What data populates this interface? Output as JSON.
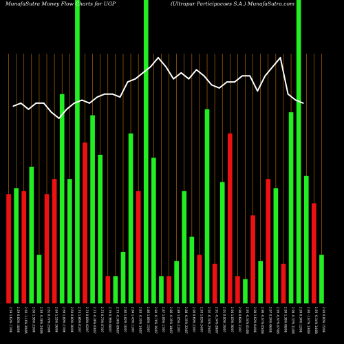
{
  "chart_data": {
    "type": "bar",
    "title_left": "MunafaSutra  Money Flow  Charts for UGP",
    "title_right": "(Ultrapar Participacoes S.A.) MunafaSutra.com",
    "colors": {
      "background": "#000000",
      "up": "#22ee22",
      "down": "#ee1111",
      "grid": "#c8780a",
      "line": "#ffffff"
    },
    "ylim": [
      0,
      100
    ],
    "categories": [
      "2.59 1.62% 17/06",
      "2.59 0.00% 18/06",
      "2.56 -1.16% 20/06",
      "2.60 1.56% 23/06",
      "2.59 -0.38% 24/06",
      "2.61 0.77% 25/06",
      "2.64 1.15% 26/06",
      "2.69 1.89% 27/06",
      "2.69 0.00% 30/06",
      "2.74 1.86% 01/07",
      "2.74 0.00% 02/07",
      "2.73 -0.36% 03/07",
      "2.75 0.73% 07/07",
      "2.76 0.36% 08/07",
      "2.75 -0.36% 09/07",
      "2.80 1.82% 10/07",
      "2.84 1.43% 11/07",
      "2.83 -0.35% 14/07",
      "2.86 1.06% 15/07",
      "2.84 -0.70% 16/07",
      "2.87 1.06% 17/07",
      "2.86 -0.35% 18/07",
      "2.89 1.05% 21/07",
      "2.88 -0.35% 22/07",
      "2.90 0.69% 23/07",
      "2.93 1.03% 24/07",
      "2.92 -0.34% 25/07",
      "2.91 -0.34% 28/07",
      "2.91 0.00% 29/07",
      "2.94 1.03% 30/07",
      "2.96 0.68% 31/07",
      "2.95 -0.34% 01/08",
      "2.98 1.02% 04/08",
      "2.96 -0.67% 05/08",
      "2.97 0.34% 06/08",
      "2.95 -0.67% 07/08",
      "2.99 1.36% 08/08",
      "2.98 -0.33% 11/08",
      "2.99 0.34% 12/08",
      "2.94 -1.67% 13/08",
      "2.93 -0.34% 14/08",
      "2.93 0.00% 15/08"
    ],
    "colors_seq": [
      "r",
      "g",
      "r",
      "g",
      "g",
      "r",
      "r",
      "g",
      "g",
      "g",
      "r",
      "g",
      "g",
      "r",
      "g",
      "g",
      "g",
      "r",
      "g",
      "g",
      "g",
      "r",
      "g",
      "g",
      "g",
      "r",
      "g",
      "r",
      "g",
      "r",
      "r",
      "g",
      "r",
      "g",
      "r",
      "g",
      "r",
      "g",
      "g",
      "g",
      "r",
      "g"
    ],
    "values": [
      36,
      38,
      37,
      45,
      16,
      36,
      41,
      69,
      41,
      100,
      53,
      62,
      49,
      9,
      9,
      17,
      56,
      37,
      100,
      48,
      9,
      9,
      14,
      37,
      22,
      16,
      64,
      13,
      40,
      56,
      9,
      8,
      29,
      14,
      41,
      38,
      13,
      63,
      100,
      42,
      33,
      16
    ],
    "line": [
      65,
      66,
      64,
      66,
      66,
      63,
      61,
      64,
      66,
      67,
      66,
      68,
      69,
      69,
      68,
      73,
      74,
      76,
      78,
      81,
      78,
      74,
      76,
      74,
      77,
      75,
      72,
      71,
      73,
      73,
      75,
      75,
      70,
      75,
      78,
      81,
      69,
      67,
      66
    ],
    "line_start_offset": 1,
    "xlabel": "",
    "ylabel": ""
  }
}
